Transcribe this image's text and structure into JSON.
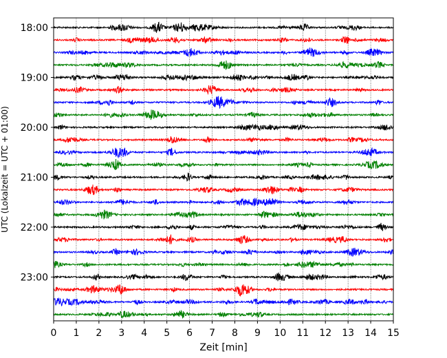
{
  "chart_data": {
    "type": "line",
    "title": "",
    "xlabel": "Zeit  [min]",
    "ylabel": "UTC (Lokalzeit = UTC + 01:00)",
    "xlim": [
      0,
      15
    ],
    "x_ticks": [
      "0",
      "1",
      "2",
      "3",
      "4",
      "5",
      "6",
      "7",
      "8",
      "9",
      "10",
      "11",
      "12",
      "13",
      "14",
      "15"
    ],
    "y_ticks": [
      "18:00",
      "19:00",
      "20:00",
      "21:00",
      "22:00",
      "23:00"
    ],
    "trace_minutes": 15,
    "trace_start_times": [
      "18:00",
      "18:15",
      "18:30",
      "18:45",
      "19:00",
      "19:15",
      "19:30",
      "19:45",
      "20:00",
      "20:15",
      "20:30",
      "20:45",
      "21:00",
      "21:15",
      "21:30",
      "21:45",
      "22:00",
      "22:15",
      "22:30",
      "22:45",
      "23:00",
      "23:15",
      "23:30",
      "23:45"
    ],
    "trace_colors": [
      "#000000",
      "#ff0000",
      "#0000ff",
      "#008000"
    ],
    "grid": "vertical dotted lines at each minute",
    "series_style": "seismograph helicorder: one 15-minute trace per row, colors cycle black, red, blue, green"
  }
}
